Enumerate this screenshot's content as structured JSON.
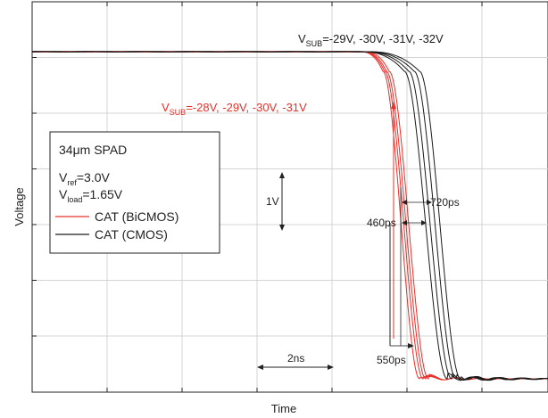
{
  "chart_data": {
    "type": "line",
    "xlabel": "Time",
    "ylabel": "Voltage",
    "grid": true,
    "axis_ticks_labeled": false,
    "colors": {
      "bicmos": "#e8302a",
      "cmos": "#1a1a1a",
      "grid": "#d4d4d4"
    },
    "legend": {
      "placement": "left",
      "title": "34μm SPAD",
      "vref": {
        "sym": "V",
        "sub": "ref",
        "val": "=3.0V"
      },
      "vload": {
        "sym": "V",
        "sub": "load",
        "val": "=1.65V"
      },
      "entries": [
        {
          "label": "CAT (BiCMOS)",
          "color": "#e8302a"
        },
        {
          "label": "CAT (CMOS)",
          "color": "#1a1a1a"
        }
      ]
    },
    "annotations": {
      "vsub_cmos": {
        "sym": "V",
        "sub": "SUB",
        "val": "=-29V, -30V, -31V, -32V",
        "color": "#1a1a1a"
      },
      "vsub_bicmos": {
        "sym": "V",
        "sub": "SUB",
        "val": "=-28V, -29V, -30V, -31V",
        "color": "#e8302a"
      },
      "scale_v": "1V",
      "scale_t": "2ns",
      "d460": "460ps",
      "d720": "720ps",
      "d550": "550ps"
    },
    "series": [
      {
        "group": "bicmos",
        "fall": [
          429,
          470
        ],
        "lead": 26,
        "wobble": 2.0
      },
      {
        "group": "bicmos",
        "fall": [
          431,
          474
        ],
        "lead": 27,
        "wobble": 2.0
      },
      {
        "group": "bicmos",
        "fall": [
          433,
          477
        ],
        "lead": 28,
        "wobble": 2.0
      },
      {
        "group": "bicmos",
        "fall": [
          436,
          480
        ],
        "lead": 29,
        "wobble": 2.0
      },
      {
        "group": "cmos",
        "fall": [
          453,
          501
        ],
        "lead": 50,
        "wobble": 3.0
      },
      {
        "group": "cmos",
        "fall": [
          458,
          506
        ],
        "lead": 52,
        "wobble": 3.0
      },
      {
        "group": "cmos",
        "fall": [
          464,
          511
        ],
        "lead": 55,
        "wobble": 3.0
      },
      {
        "group": "cmos",
        "fall": [
          470,
          516
        ],
        "lead": 58,
        "wobble": 3.0
      }
    ]
  }
}
